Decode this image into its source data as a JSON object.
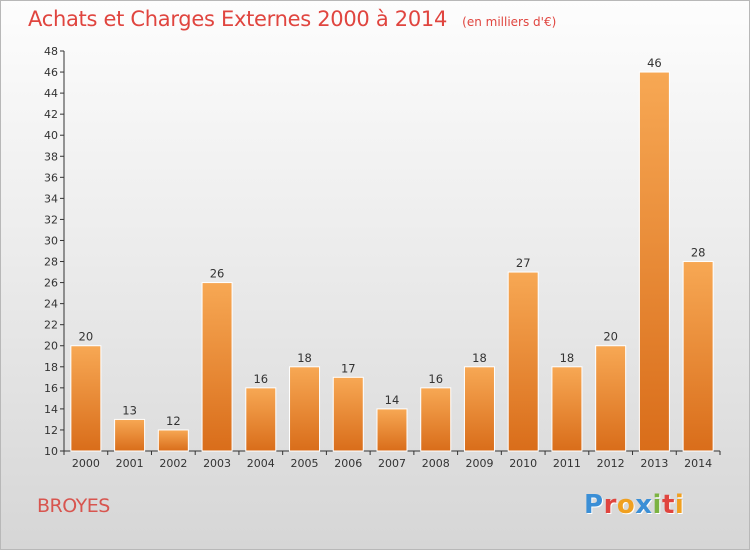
{
  "header": {
    "title": "Achats et Charges Externes 2000 à 2014",
    "subtitle": "(en milliers d'€)"
  },
  "footer": {
    "city": "BROYES",
    "brand": "Proxiti",
    "brand_colors": [
      "#3b8fd6",
      "#e0453f",
      "#f0a020",
      "#3b8fd6",
      "#7cb342",
      "#e0453f",
      "#f0a020"
    ]
  },
  "colors": {
    "bar_top": "#f7a854",
    "bar_bottom": "#d96d1a",
    "bar_edge": "#ffffff",
    "title": "#e0453f"
  },
  "chart_data": {
    "type": "bar",
    "categories": [
      "2000",
      "2001",
      "2002",
      "2003",
      "2004",
      "2005",
      "2006",
      "2007",
      "2008",
      "2009",
      "2010",
      "2011",
      "2012",
      "2013",
      "2014"
    ],
    "values": [
      20,
      13,
      12,
      26,
      16,
      18,
      17,
      14,
      16,
      18,
      27,
      18,
      20,
      46,
      28
    ],
    "data_labels": [
      "20",
      "13",
      "12",
      "26",
      "16",
      "18",
      "17",
      "14",
      "16",
      "18",
      "27",
      "18",
      "20",
      "46",
      "28"
    ],
    "ylim": [
      10,
      48
    ],
    "yticks": [
      10,
      12,
      14,
      16,
      18,
      20,
      22,
      24,
      26,
      28,
      30,
      32,
      34,
      36,
      38,
      40,
      42,
      44,
      46,
      48
    ],
    "ytick_labels": [
      "10",
      "12",
      "14",
      "16",
      "18",
      "20",
      "22",
      "24",
      "26",
      "28",
      "30",
      "32",
      "34",
      "36",
      "38",
      "40",
      "42",
      "44",
      "46",
      "48"
    ],
    "xlabel": "",
    "ylabel": "",
    "grid": false,
    "legend": "none"
  }
}
